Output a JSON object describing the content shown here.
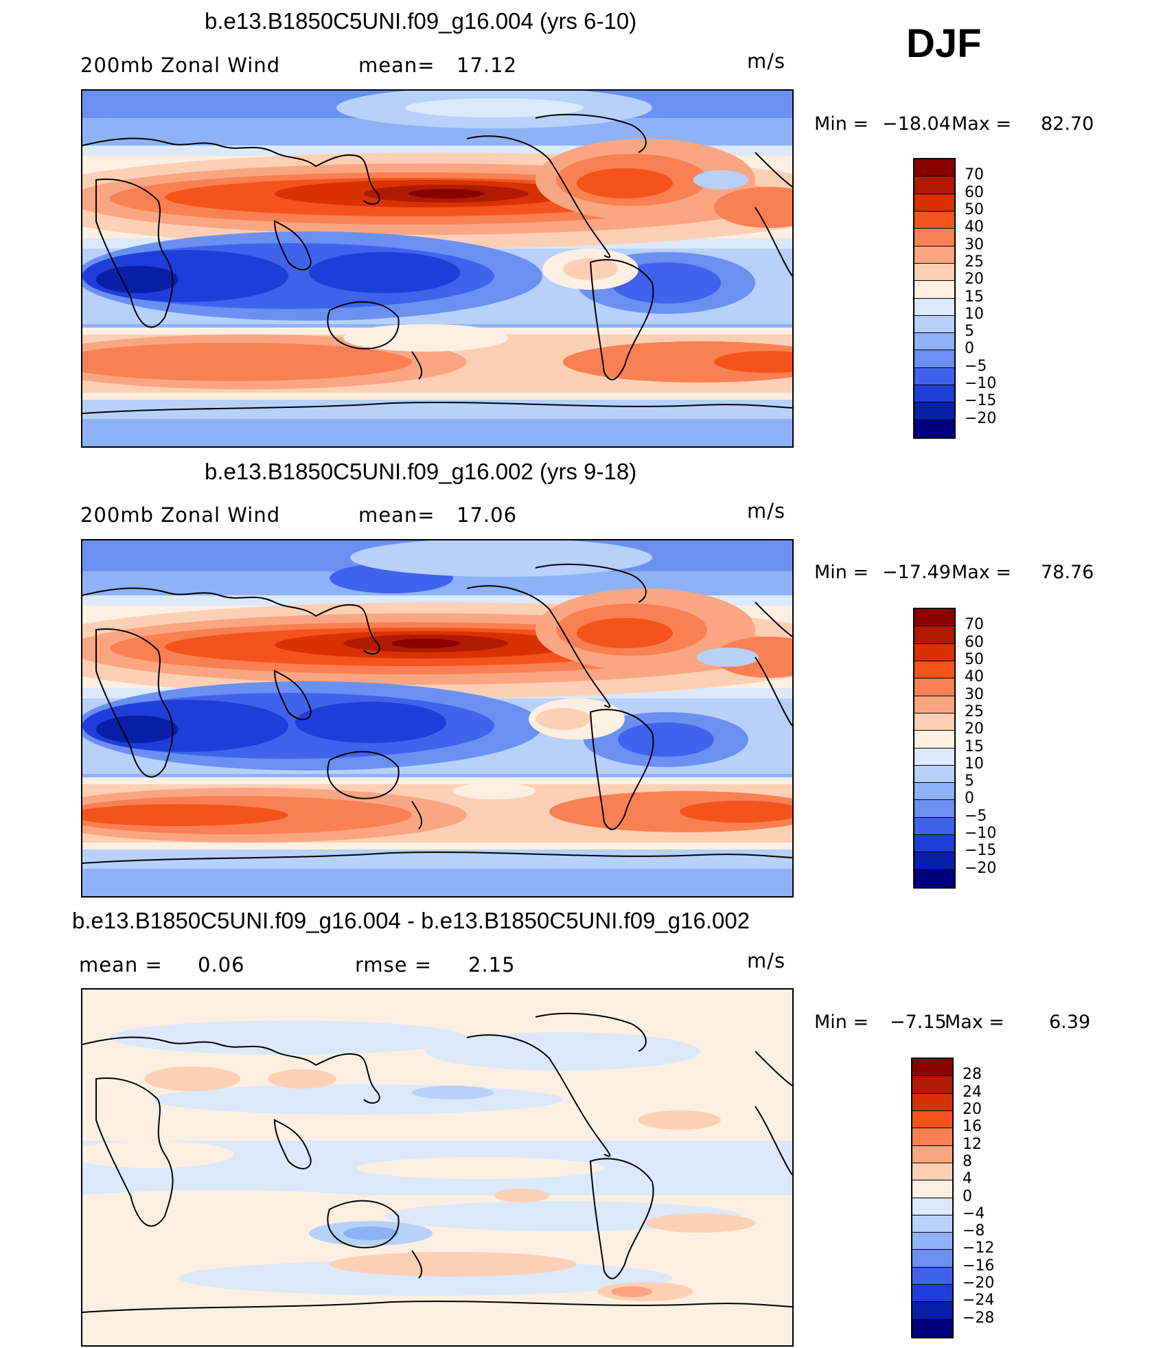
{
  "season": "DJF",
  "panels": [
    {
      "title": "b.e13.B1850C5UNI.f09_g16.004 (yrs 6-10)",
      "left_label": "200mb Zonal Wind",
      "stat_label": "mean=",
      "stat_value": "17.12",
      "units": "m/s",
      "min_label": "Min =",
      "min_value": "−18.04",
      "max_label": "Max =",
      "max_value": "82.70",
      "colorbar": {
        "labels": [
          "70",
          "60",
          "50",
          "40",
          "30",
          "25",
          "20",
          "15",
          "10",
          "5",
          "0",
          "−5",
          "−10",
          "−15",
          "−20"
        ],
        "colors": [
          "#8b0000",
          "#b01a00",
          "#d83200",
          "#f4541c",
          "#f98052",
          "#fba682",
          "#fdd0b5",
          "#fdf0e2",
          "#dbe9fb",
          "#b7d1fb",
          "#8fb2f6",
          "#6b90f2",
          "#3f63ec",
          "#1f3ed9",
          "#0a1fa8",
          "#00007e"
        ]
      }
    },
    {
      "title": "b.e13.B1850C5UNI.f09_g16.002 (yrs 9-18)",
      "left_label": "200mb Zonal Wind",
      "stat_label": "mean=",
      "stat_value": "17.06",
      "units": "m/s",
      "min_label": "Min =",
      "min_value": "−17.49",
      "max_label": "Max =",
      "max_value": "78.76",
      "colorbar": {
        "labels": [
          "70",
          "60",
          "50",
          "40",
          "30",
          "25",
          "20",
          "15",
          "10",
          "5",
          "0",
          "−5",
          "−10",
          "−15",
          "−20"
        ],
        "colors": [
          "#8b0000",
          "#b01a00",
          "#d83200",
          "#f4541c",
          "#f98052",
          "#fba682",
          "#fdd0b5",
          "#fdf0e2",
          "#dbe9fb",
          "#b7d1fb",
          "#8fb2f6",
          "#6b90f2",
          "#3f63ec",
          "#1f3ed9",
          "#0a1fa8",
          "#00007e"
        ]
      }
    },
    {
      "title": "b.e13.B1850C5UNI.f09_g16.004 - b.e13.B1850C5UNI.f09_g16.002",
      "left_label": "mean =",
      "left_value": "0.06",
      "stat_label": "rmse =",
      "stat_value": "2.15",
      "units": "m/s",
      "min_label": "Min =",
      "min_value": "−7.15",
      "max_label": "Max =",
      "max_value": "6.39",
      "colorbar": {
        "labels": [
          "28",
          "24",
          "20",
          "16",
          "12",
          "8",
          "4",
          "0",
          "−4",
          "−8",
          "−12",
          "−16",
          "−20",
          "−24",
          "−28"
        ],
        "colors": [
          "#8b0000",
          "#b01a00",
          "#d83200",
          "#f4541c",
          "#f98052",
          "#fba682",
          "#fdd0b5",
          "#fdf0e2",
          "#dbe9fb",
          "#b7d1fb",
          "#8fb2f6",
          "#6b90f2",
          "#3f63ec",
          "#1f3ed9",
          "#0a1fa8",
          "#00007e"
        ]
      }
    }
  ],
  "chart_data": [
    {
      "type": "heatmap",
      "title": "b.e13.B1850C5UNI.f09_g16.004 (yrs 6-10)",
      "variable": "200mb Zonal Wind",
      "units": "m/s",
      "mean": 17.12,
      "min": -18.04,
      "max": 82.7,
      "levels": [
        -20,
        -15,
        -10,
        -5,
        0,
        5,
        10,
        15,
        20,
        25,
        30,
        40,
        50,
        60,
        70
      ]
    },
    {
      "type": "heatmap",
      "title": "b.e13.B1850C5UNI.f09_g16.002 (yrs 9-18)",
      "variable": "200mb Zonal Wind",
      "units": "m/s",
      "mean": 17.06,
      "min": -17.49,
      "max": 78.76,
      "levels": [
        -20,
        -15,
        -10,
        -5,
        0,
        5,
        10,
        15,
        20,
        25,
        30,
        40,
        50,
        60,
        70
      ]
    },
    {
      "type": "heatmap",
      "title": "b.e13.B1850C5UNI.f09_g16.004 - b.e13.B1850C5UNI.f09_g16.002",
      "units": "m/s",
      "mean": 0.06,
      "rmse": 2.15,
      "min": -7.15,
      "max": 6.39,
      "levels": [
        -28,
        -24,
        -20,
        -16,
        -12,
        -8,
        -4,
        0,
        4,
        8,
        12,
        16,
        20,
        24,
        28
      ]
    }
  ]
}
